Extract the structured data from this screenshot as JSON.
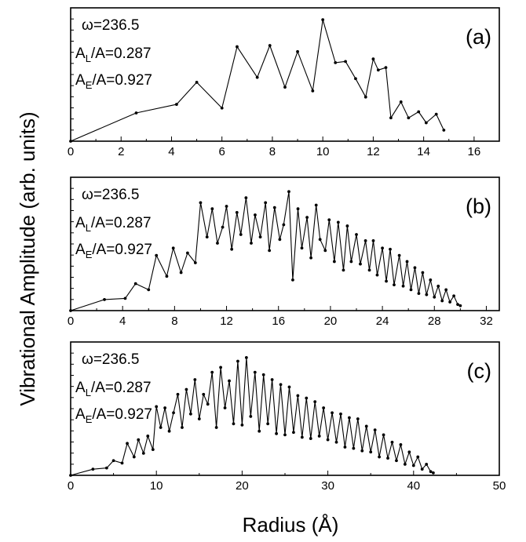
{
  "ylabel": "Vibrational Amplitude (arb. units)",
  "xlabel": "Radius (Å)",
  "chart_data": [
    {
      "type": "line",
      "panel_label": "(a)",
      "annotations": {
        "omega": "ω=236.5",
        "al_main": "A",
        "al_sub": "L",
        "al_rest": "/A=0.287",
        "ae_main": "A",
        "ae_sub": "E",
        "ae_rest": "/A=0.927"
      },
      "xlim": [
        0,
        17
      ],
      "xticks": [
        0,
        2,
        4,
        6,
        8,
        10,
        12,
        14,
        16
      ],
      "ylim": [
        0,
        1
      ],
      "grid": false,
      "x": [
        0,
        2.6,
        4.2,
        5.0,
        6.0,
        6.6,
        7.4,
        7.9,
        8.5,
        9.0,
        9.6,
        10.0,
        10.5,
        10.9,
        11.3,
        11.7,
        12.0,
        12.2,
        12.5,
        12.7,
        13.1,
        13.4,
        13.8,
        14.1,
        14.5,
        14.8
      ],
      "y": [
        0,
        0.23,
        0.3,
        0.48,
        0.27,
        0.77,
        0.52,
        0.78,
        0.44,
        0.73,
        0.41,
        0.99,
        0.64,
        0.65,
        0.51,
        0.36,
        0.67,
        0.58,
        0.6,
        0.19,
        0.32,
        0.19,
        0.24,
        0.15,
        0.22,
        0.09
      ]
    },
    {
      "type": "line",
      "panel_label": "(b)",
      "annotations": {
        "omega": "ω=236.5",
        "al_main": "A",
        "al_sub": "L",
        "al_rest": "/A=0.287",
        "ae_main": "A",
        "ae_sub": "E",
        "ae_rest": "/A=0.927"
      },
      "xlim": [
        0,
        33
      ],
      "xticks": [
        0,
        4,
        8,
        12,
        16,
        20,
        24,
        28,
        32
      ],
      "ylim": [
        0,
        1
      ],
      "grid": false,
      "x": [
        0,
        2.6,
        4.2,
        5.0,
        6.0,
        6.6,
        7.4,
        7.9,
        8.5,
        9.0,
        9.6,
        10.0,
        10.5,
        10.9,
        11.3,
        11.7,
        12.0,
        12.4,
        12.8,
        13.1,
        13.5,
        13.9,
        14.2,
        14.6,
        15.0,
        15.3,
        15.7,
        16.1,
        16.4,
        16.8,
        17.1,
        17.5,
        17.8,
        18.2,
        18.5,
        18.9,
        19.2,
        19.6,
        19.9,
        20.3,
        20.6,
        21.0,
        21.3,
        21.6,
        22.0,
        22.3,
        22.7,
        23.0,
        23.3,
        23.6,
        24.0,
        24.3,
        24.6,
        24.9,
        25.3,
        25.6,
        25.9,
        26.2,
        26.5,
        26.8,
        27.1,
        27.4,
        27.7,
        28.0,
        28.3,
        28.6,
        28.9,
        29.2,
        29.5,
        29.8,
        30.0
      ],
      "y": [
        0,
        0.09,
        0.1,
        0.22,
        0.17,
        0.45,
        0.28,
        0.51,
        0.31,
        0.47,
        0.39,
        0.88,
        0.6,
        0.83,
        0.55,
        0.68,
        0.85,
        0.5,
        0.8,
        0.62,
        0.92,
        0.55,
        0.78,
        0.6,
        0.88,
        0.49,
        0.84,
        0.58,
        0.7,
        0.97,
        0.25,
        0.83,
        0.51,
        0.76,
        0.43,
        0.86,
        0.58,
        0.49,
        0.74,
        0.4,
        0.72,
        0.33,
        0.69,
        0.4,
        0.62,
        0.38,
        0.57,
        0.33,
        0.57,
        0.29,
        0.51,
        0.24,
        0.5,
        0.21,
        0.45,
        0.2,
        0.4,
        0.17,
        0.35,
        0.14,
        0.31,
        0.13,
        0.25,
        0.11,
        0.2,
        0.08,
        0.17,
        0.07,
        0.12,
        0.05,
        0.04
      ]
    },
    {
      "type": "line",
      "panel_label": "(c)",
      "annotations": {
        "omega": "ω=236.5",
        "al_main": "A",
        "al_sub": "L",
        "al_rest": "/A=0.287",
        "ae_main": "A",
        "ae_sub": "E",
        "ae_rest": "/A=0.927"
      },
      "xlim": [
        0,
        50
      ],
      "xticks": [
        0,
        10,
        20,
        30,
        40,
        50
      ],
      "ylim": [
        0,
        1
      ],
      "grid": false,
      "x": [
        0,
        2.6,
        4.2,
        5.0,
        6.0,
        6.6,
        7.4,
        7.9,
        8.5,
        9.0,
        9.6,
        10.0,
        10.5,
        11.0,
        11.5,
        12.0,
        12.5,
        13.0,
        13.5,
        14.0,
        14.5,
        15.0,
        15.5,
        16.0,
        16.5,
        17.0,
        17.5,
        18.0,
        18.5,
        19.0,
        19.5,
        20.0,
        20.5,
        21.0,
        21.5,
        22.0,
        22.5,
        23.0,
        23.5,
        24.0,
        24.5,
        25.0,
        25.5,
        26.0,
        26.5,
        27.0,
        27.5,
        28.0,
        28.5,
        29.0,
        29.5,
        30.0,
        30.5,
        31.0,
        31.5,
        32.0,
        32.5,
        33.0,
        33.5,
        34.0,
        34.5,
        35.0,
        35.5,
        36.0,
        36.5,
        37.0,
        37.5,
        38.0,
        38.5,
        39.0,
        39.5,
        40.0,
        40.5,
        41.0,
        41.5,
        42.0,
        42.3
      ],
      "y": [
        0,
        0.05,
        0.06,
        0.12,
        0.1,
        0.26,
        0.15,
        0.29,
        0.18,
        0.32,
        0.21,
        0.56,
        0.39,
        0.55,
        0.36,
        0.51,
        0.66,
        0.39,
        0.7,
        0.5,
        0.78,
        0.46,
        0.66,
        0.58,
        0.84,
        0.39,
        0.88,
        0.55,
        0.77,
        0.42,
        0.93,
        0.41,
        0.96,
        0.48,
        0.84,
        0.36,
        0.82,
        0.42,
        0.78,
        0.34,
        0.74,
        0.33,
        0.72,
        0.35,
        0.65,
        0.31,
        0.63,
        0.3,
        0.6,
        0.32,
        0.55,
        0.29,
        0.51,
        0.27,
        0.5,
        0.23,
        0.47,
        0.22,
        0.46,
        0.2,
        0.4,
        0.19,
        0.37,
        0.15,
        0.33,
        0.14,
        0.27,
        0.12,
        0.25,
        0.09,
        0.19,
        0.08,
        0.15,
        0.05,
        0.09,
        0.03,
        0.02
      ]
    }
  ]
}
